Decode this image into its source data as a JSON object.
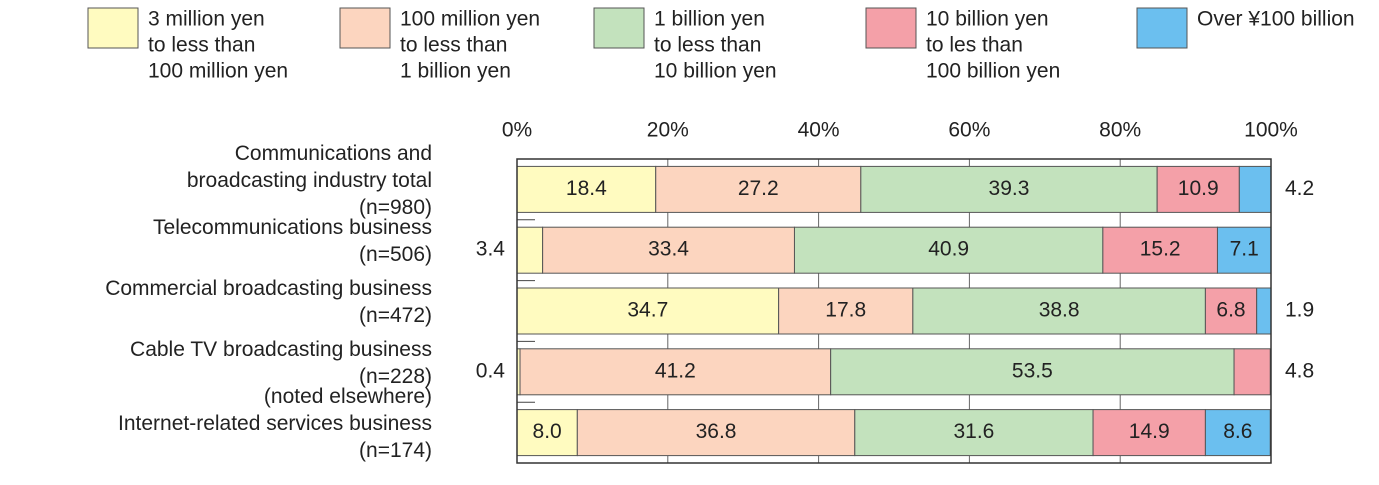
{
  "chart_data": {
    "type": "stacked-bar-horizontal",
    "categories": [
      [
        "Communications and",
        "broadcasting industry total",
        "(n=980)"
      ],
      [
        "Telecommunications business",
        "(n=506)"
      ],
      [
        "Commercial broadcasting business",
        "(n=472)"
      ],
      [
        "Cable TV broadcasting business",
        "(n=228)"
      ],
      [
        "(noted elsewhere)",
        "Internet-related services business",
        "(n=174)"
      ]
    ],
    "series": [
      {
        "name": [
          "3 million yen",
          "to less than",
          "100 million yen"
        ],
        "color": "#fffbc0",
        "values": [
          18.4,
          3.4,
          34.7,
          0.4,
          8.0
        ],
        "value_labels": [
          "18.4",
          "3.4",
          "34.7",
          "0.4",
          "8.0"
        ]
      },
      {
        "name": [
          "100 million yen",
          "to less than",
          "1 billion yen"
        ],
        "color": "#fcd5bf",
        "values": [
          27.2,
          33.4,
          17.8,
          41.2,
          36.8
        ],
        "value_labels": [
          "27.2",
          "33.4",
          "17.8",
          "41.2",
          "36.8"
        ]
      },
      {
        "name": [
          "1 billion yen",
          "to less than",
          "10 billion yen"
        ],
        "color": "#c3e2bd",
        "values": [
          39.3,
          40.9,
          38.8,
          53.5,
          31.6
        ],
        "value_labels": [
          "39.3",
          "40.9",
          "38.8",
          "53.5",
          "31.6"
        ]
      },
      {
        "name": [
          "10 billion yen",
          "to les than",
          "100 billion yen"
        ],
        "color": "#f4a0a8",
        "values": [
          10.9,
          15.2,
          6.8,
          4.8,
          14.9
        ],
        "value_labels": [
          "10.9",
          "15.2",
          "6.8",
          "4.8",
          "14.9"
        ]
      },
      {
        "name": [
          "Over ¥100 billion"
        ],
        "color": "#6bbfef",
        "values": [
          4.2,
          7.1,
          1.9,
          null,
          8.6
        ],
        "value_labels": [
          "4.2",
          "7.1",
          "1.9",
          null,
          "8.6"
        ]
      }
    ],
    "xlim": [
      0,
      100
    ],
    "xticks": [
      {
        "value": 0,
        "label": "0%"
      },
      {
        "value": 20,
        "label": "20%"
      },
      {
        "value": 40,
        "label": "40%"
      },
      {
        "value": 60,
        "label": "60%"
      },
      {
        "value": 80,
        "label": "80%"
      },
      {
        "value": 100,
        "label": "100%"
      }
    ],
    "grid": true
  }
}
